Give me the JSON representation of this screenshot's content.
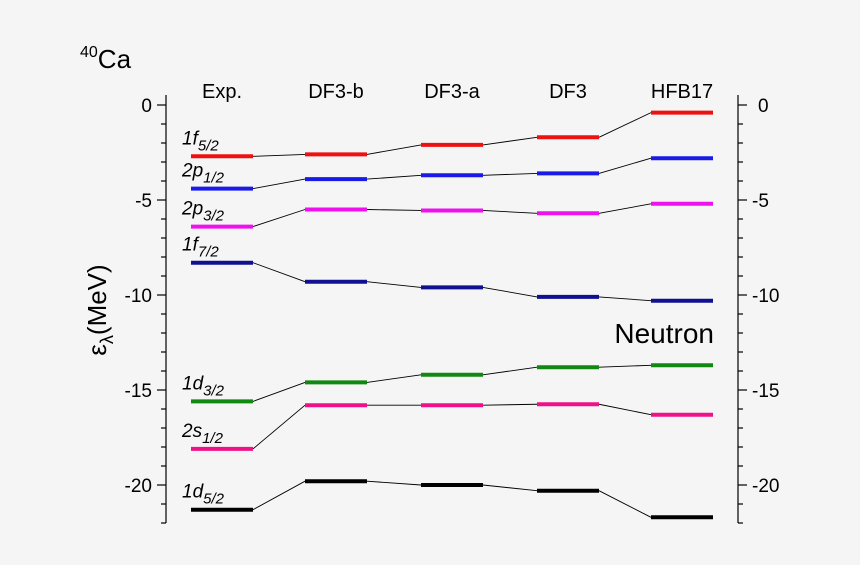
{
  "chart_data": {
    "type": "line",
    "nucleus_mass": "40",
    "nucleus_symbol": "Ca",
    "annotation": "Neutron",
    "ylabel": {
      "symbol": "ε",
      "sub": "λ",
      "text": "(MeV)"
    },
    "ylim": [
      -22,
      0.5
    ],
    "yticks": [
      0,
      -5,
      -10,
      -15,
      -20
    ],
    "tick_labels": [
      "0",
      "-5",
      "-10",
      "-15",
      "-20"
    ],
    "categories": [
      "Exp.",
      "DF3-b",
      "DF3-a",
      "DF3",
      "HFB17"
    ],
    "series": [
      {
        "main": "1f",
        "sub": "5/2",
        "color": "#ee1111",
        "values": [
          -2.7,
          -2.6,
          -2.1,
          -1.7,
          -0.4
        ]
      },
      {
        "main": "2p",
        "sub": "1/2",
        "color": "#1a1ae6",
        "values": [
          -4.4,
          -3.9,
          -3.7,
          -3.6,
          -2.8
        ]
      },
      {
        "main": "2p",
        "sub": "3/2",
        "color": "#ee11ee",
        "values": [
          -6.4,
          -5.5,
          -5.55,
          -5.7,
          -5.2
        ]
      },
      {
        "main": "1f",
        "sub": "7/2",
        "color": "#101090",
        "values": [
          -8.3,
          -9.3,
          -9.6,
          -10.1,
          -10.3
        ]
      },
      {
        "main": "1d",
        "sub": "3/2",
        "color": "#118811",
        "values": [
          -15.6,
          -14.6,
          -14.2,
          -13.8,
          -13.7
        ]
      },
      {
        "main": "2s",
        "sub": "1/2",
        "color": "#ee1188",
        "values": [
          -18.1,
          -15.8,
          -15.8,
          -15.75,
          -16.3
        ]
      },
      {
        "main": "1d",
        "sub": "5/2",
        "color": "#000000",
        "values": [
          -21.3,
          -19.8,
          -20.0,
          -20.3,
          -21.7
        ]
      }
    ]
  }
}
